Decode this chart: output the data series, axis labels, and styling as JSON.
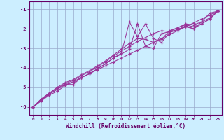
{
  "background_color": "#cceeff",
  "line_color": "#993399",
  "grid_color": "#99aacc",
  "xlabel": "Windchill (Refroidissement éolien,°C)",
  "xlabel_color": "#660066",
  "tick_color": "#660066",
  "xlim": [
    -0.5,
    23.5
  ],
  "ylim": [
    -6.4,
    -0.6
  ],
  "yticks": [
    -6,
    -5,
    -4,
    -3,
    -2,
    -1
  ],
  "xticks": [
    0,
    1,
    2,
    3,
    4,
    5,
    6,
    7,
    8,
    9,
    10,
    11,
    12,
    13,
    14,
    15,
    16,
    17,
    18,
    19,
    20,
    21,
    22,
    23
  ],
  "series": [
    {
      "x": [
        0,
        1,
        2,
        3,
        4,
        5,
        6,
        7,
        8,
        9,
        10,
        11,
        12,
        13,
        14,
        15,
        16,
        17,
        18,
        19,
        20,
        21,
        22,
        23
      ],
      "y": [
        -6.0,
        -5.7,
        -5.4,
        -5.2,
        -4.9,
        -4.7,
        -4.5,
        -4.3,
        -4.1,
        -3.9,
        -3.7,
        -3.5,
        -3.3,
        -3.1,
        -2.9,
        -2.7,
        -2.5,
        -2.3,
        -2.1,
        -1.9,
        -1.7,
        -1.5,
        -1.3,
        -1.1
      ]
    },
    {
      "x": [
        0,
        1,
        2,
        3,
        4,
        5,
        6,
        7,
        8,
        9,
        10,
        11,
        12,
        13,
        14,
        15,
        16,
        17,
        18,
        19,
        20,
        21,
        22,
        23
      ],
      "y": [
        -6.0,
        -5.65,
        -5.35,
        -5.1,
        -4.85,
        -4.85,
        -4.5,
        -4.3,
        -4.05,
        -3.8,
        -3.5,
        -3.25,
        -1.65,
        -2.4,
        -1.75,
        -2.5,
        -2.7,
        -2.2,
        -2.05,
        -1.85,
        -2.0,
        -1.65,
        -1.2,
        -1.1
      ]
    },
    {
      "x": [
        0,
        1,
        2,
        3,
        4,
        5,
        6,
        7,
        8,
        9,
        10,
        11,
        12,
        13,
        14,
        15,
        16,
        17,
        18,
        19,
        20,
        21,
        22,
        23
      ],
      "y": [
        -6.0,
        -5.65,
        -5.35,
        -5.1,
        -4.85,
        -4.75,
        -4.5,
        -4.3,
        -4.05,
        -3.8,
        -3.5,
        -3.3,
        -3.05,
        -1.75,
        -2.9,
        -3.0,
        -2.25,
        -2.15,
        -2.05,
        -1.9,
        -2.0,
        -1.75,
        -1.5,
        -1.1
      ]
    },
    {
      "x": [
        0,
        1,
        2,
        3,
        4,
        5,
        6,
        7,
        8,
        9,
        10,
        11,
        12,
        13,
        14,
        15,
        16,
        17,
        18,
        19,
        20,
        21,
        22,
        23
      ],
      "y": [
        -6.0,
        -5.6,
        -5.3,
        -5.05,
        -4.8,
        -4.65,
        -4.4,
        -4.2,
        -3.95,
        -3.7,
        -3.4,
        -3.15,
        -2.9,
        -2.65,
        -2.45,
        -2.25,
        -2.1,
        -2.15,
        -1.95,
        -1.8,
        -1.9,
        -1.75,
        -1.5,
        -1.1
      ]
    },
    {
      "x": [
        0,
        1,
        2,
        3,
        4,
        5,
        6,
        7,
        8,
        9,
        10,
        11,
        12,
        13,
        14,
        15,
        16,
        17,
        18,
        19,
        20,
        21,
        22,
        23
      ],
      "y": [
        -6.0,
        -5.6,
        -5.3,
        -5.0,
        -4.75,
        -4.6,
        -4.35,
        -4.15,
        -3.9,
        -3.65,
        -3.35,
        -3.05,
        -2.75,
        -2.5,
        -2.55,
        -2.7,
        -2.55,
        -2.1,
        -1.95,
        -1.75,
        -1.8,
        -1.65,
        -1.45,
        -1.05
      ]
    }
  ]
}
